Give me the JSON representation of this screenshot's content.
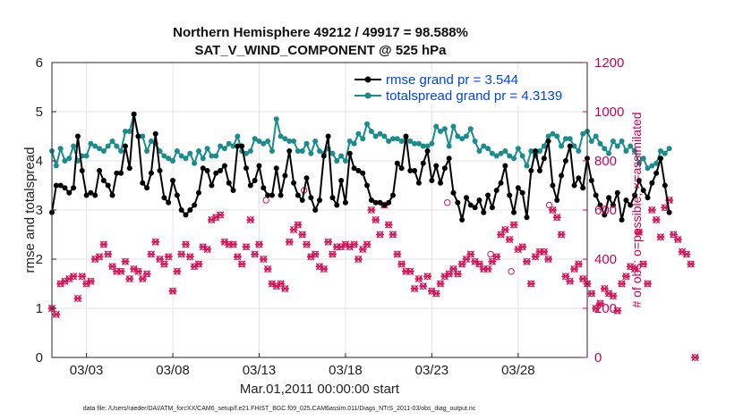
{
  "chart_data": {
    "type": "line",
    "title": "Northern Hemisphere 49212 / 49917 = 98.588%",
    "subtitle": "SAT_V_WIND_COMPONENT @ 525 hPa",
    "ylabel": "rmse and totalspread",
    "ylabel_right": "# of obs: o=possible; ×=assimilated",
    "xlabel": "Mar.01,2011 00:00:00 start",
    "footnote": "data file: /Users/raeder/DAI/ATM_forcXX/CAM6_setup/f.e21.FHIST_BGC.f09_025.CAM6assim.011/Diags_NTrS_2011-03/obs_diag_output.nc",
    "xlim": [
      1.0,
      32.0
    ],
    "ylim": [
      0,
      6
    ],
    "ylim_right": [
      0,
      1200
    ],
    "yticks": [
      "0",
      "1",
      "2",
      "3",
      "4",
      "5",
      "6"
    ],
    "yticks_right": [
      "0",
      "200",
      "400",
      "600",
      "800",
      "1000",
      "1200"
    ],
    "x_tick_values": [
      3,
      8,
      13,
      18,
      23,
      28
    ],
    "x_tick_labels": [
      "03/03",
      "03/08",
      "03/13",
      "03/18",
      "03/23",
      "03/28"
    ],
    "grid": true,
    "legend_position": "top-right",
    "colors": {
      "rmse": "#000000",
      "spread": "#1a8c8c",
      "obs": "#d4145a",
      "legend_text": "#0044ee"
    },
    "series": [
      {
        "name": "rmse grand pr = 3.544",
        "x_start": 1.0,
        "x_step": 0.25,
        "values": [
          2.95,
          3.5,
          3.5,
          3.45,
          3.35,
          3.45,
          4.5,
          3.8,
          3.3,
          3.35,
          3.3,
          3.8,
          3.6,
          3.5,
          3.3,
          3.75,
          3.75,
          4.3,
          3.85,
          4.95,
          4.5,
          3.55,
          3.45,
          3.75,
          4.55,
          3.8,
          3.25,
          3.15,
          3.6,
          3.3,
          3.0,
          2.9,
          3.0,
          3.1,
          3.35,
          3.85,
          3.8,
          3.5,
          3.75,
          3.8,
          3.9,
          3.55,
          3.4,
          4.3,
          4.3,
          3.85,
          3.5,
          3.6,
          3.9,
          3.45,
          3.3,
          3.3,
          3.85,
          3.3,
          3.7,
          4.2,
          3.55,
          3.3,
          3.2,
          3.65,
          3.25,
          3.0,
          3.2,
          4.1,
          4.5,
          3.25,
          3.1,
          3.6,
          3.15,
          4.15,
          3.85,
          3.8,
          3.75,
          3.5,
          3.2,
          3.15,
          3.15,
          3.1,
          3.15,
          3.3,
          3.95,
          3.85,
          4.5,
          3.8,
          3.8,
          3.55,
          3.95,
          4.2,
          3.6,
          3.9,
          3.55,
          3.85,
          4.05,
          3.35,
          3.15,
          2.8,
          3.25,
          3.1,
          3.05,
          3.2,
          2.95,
          3.3,
          3.05,
          3.4,
          3.55,
          3.9,
          3.3,
          2.95,
          3.45,
          3.35,
          2.85,
          3.8,
          4.2,
          3.8,
          4.05,
          4.4,
          3.5,
          3.2,
          3.7,
          4.0,
          4.3,
          3.5,
          3.65,
          3.45,
          4.05,
          3.6,
          3.3,
          3.1,
          2.9,
          3.25,
          3.1,
          3.35,
          2.8,
          3.2,
          3.1,
          3.3,
          3.6,
          3.4,
          3.25,
          3.55,
          3.75,
          4.05,
          3.5,
          2.95
        ]
      },
      {
        "name": "totalspread grand pr = 4.3139",
        "x_start": 1.0,
        "x_step": 0.25,
        "values": [
          4.2,
          3.9,
          4.25,
          4.0,
          4.05,
          4.3,
          4.0,
          4.1,
          4.1,
          4.35,
          4.3,
          4.25,
          4.2,
          4.3,
          4.4,
          4.3,
          4.2,
          4.6,
          4.6,
          4.95,
          4.5,
          4.5,
          4.2,
          4.4,
          4.35,
          4.2,
          4.1,
          4.05,
          4.0,
          4.2,
          4.1,
          4.05,
          4.15,
          3.95,
          4.2,
          4.05,
          4.25,
          4.1,
          4.1,
          4.3,
          4.25,
          4.35,
          4.3,
          4.5,
          4.2,
          4.15,
          4.2,
          4.45,
          4.4,
          4.35,
          4.4,
          4.2,
          4.85,
          4.5,
          4.45,
          4.4,
          4.4,
          4.2,
          4.2,
          4.35,
          4.15,
          4.4,
          4.2,
          4.15,
          4.25,
          4.15,
          4.0,
          4.1,
          4.0,
          4.4,
          4.35,
          4.55,
          4.45,
          4.75,
          4.6,
          4.5,
          4.55,
          4.5,
          4.4,
          4.45,
          4.45,
          4.4,
          4.45,
          4.4,
          4.35,
          4.35,
          4.3,
          4.3,
          4.35,
          4.7,
          4.6,
          4.65,
          4.3,
          4.7,
          4.5,
          4.45,
          4.5,
          4.65,
          4.4,
          4.2,
          4.3,
          4.25,
          4.15,
          4.1,
          4.15,
          4.2,
          4.1,
          4.05,
          4.25,
          4.1,
          3.9,
          4.2,
          4.1,
          4.2,
          4.3,
          4.5,
          4.55,
          4.5,
          4.3,
          4.45,
          4.45,
          4.3,
          4.2,
          4.55,
          4.6,
          4.4,
          4.5,
          4.35,
          4.25,
          4.15,
          4.4,
          4.3,
          4.4,
          4.2,
          4.3,
          4.2,
          3.95,
          4.05,
          3.85,
          3.9,
          3.95,
          4.2,
          4.15,
          4.25
        ]
      },
      {
        "name": "",
        "axis": "right",
        "x_start": 1.0,
        "x_step": 0.25,
        "values": [
          200,
          175,
          300,
          310,
          320,
          330,
          240,
          330,
          300,
          310,
          400,
          410,
          460,
          420,
          370,
          350,
          350,
          390,
          320,
          360,
          350,
          320,
          340,
          420,
          470,
          400,
          380,
          410,
          270,
          350,
          420,
          460,
          410,
          370,
          380,
          450,
          440,
          560,
          570,
          580,
          470,
          460,
          460,
          410,
          380,
          450,
          560,
          420,
          460,
          400,
          360,
          300,
          290,
          300,
          280,
          470,
          520,
          540,
          500,
          460,
          410,
          420,
          370,
          360,
          470,
          420,
          450,
          450,
          460,
          450,
          460,
          400,
          440,
          460,
          600,
          560,
          500,
          620,
          540,
          500,
          420,
          380,
          350,
          350,
          280,
          320,
          290,
          330,
          270,
          260,
          300,
          330,
          340,
          360,
          340,
          380,
          400,
          420,
          390,
          380,
          360,
          360,
          390,
          410,
          500,
          520,
          480,
          540,
          440,
          450,
          390,
          300,
          410,
          430,
          430,
          400,
          600,
          570,
          500,
          330,
          310,
          360,
          380,
          320,
          300,
          260,
          200,
          220,
          280,
          260,
          250,
          190,
          300,
          330,
          370,
          360,
          510,
          380,
          300,
          600,
          560,
          490,
          610,
          640,
          500,
          480,
          430,
          420,
          380,
          0
        ]
      }
    ],
    "extra_circles": [
      {
        "x": 13.4,
        "y": 640
      },
      {
        "x": 15.6,
        "y": 680
      },
      {
        "x": 23.9,
        "y": 630
      },
      {
        "x": 26.4,
        "y": 420
      },
      {
        "x": 27.6,
        "y": 350
      },
      {
        "x": 29.8,
        "y": 620
      }
    ]
  }
}
